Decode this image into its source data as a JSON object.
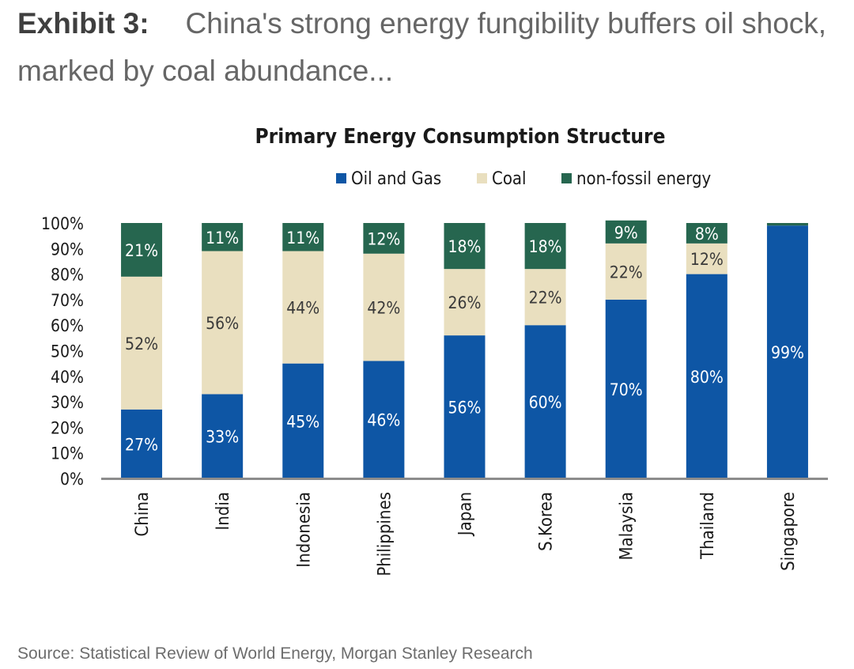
{
  "exhibit": {
    "label": "Exhibit 3:",
    "title": "China's strong energy fungibility buffers oil shock, marked by coal abundance..."
  },
  "source": "Source: Statistical Review of World Energy, Morgan Stanley Research",
  "colors": {
    "oil_gas": "#0e56a5",
    "coal": "#e9dfbf",
    "non_fossil": "#26664f",
    "axis": "#8c8c8c"
  },
  "chart_data": {
    "type": "bar",
    "stacked": true,
    "title": "Primary Energy Consumption Structure",
    "xlabel": "",
    "ylabel": "",
    "ylim": [
      0,
      100
    ],
    "y_ticks": [
      "0%",
      "10%",
      "20%",
      "30%",
      "40%",
      "50%",
      "60%",
      "70%",
      "80%",
      "90%",
      "100%"
    ],
    "legend_position": "top-center",
    "categories": [
      "China",
      "India",
      "Indonesia",
      "Philippines",
      "Japan",
      "S.Korea",
      "Malaysia",
      "Thailand",
      "Singapore"
    ],
    "series": [
      {
        "name": "Oil and Gas",
        "color_key": "oil_gas",
        "label_color": "#ffffff",
        "values": [
          27,
          33,
          45,
          46,
          56,
          60,
          70,
          80,
          99
        ],
        "labels": [
          "27%",
          "33%",
          "45%",
          "46%",
          "56%",
          "60%",
          "70%",
          "80%",
          "99%"
        ]
      },
      {
        "name": "Coal",
        "color_key": "coal",
        "label_color": "#3a3a3a",
        "values": [
          52,
          56,
          44,
          42,
          26,
          22,
          22,
          12,
          0
        ],
        "labels": [
          "52%",
          "56%",
          "44%",
          "42%",
          "26%",
          "22%",
          "22%",
          "12%",
          ""
        ]
      },
      {
        "name": "non-fossil energy",
        "color_key": "non_fossil",
        "label_color": "#ffffff",
        "values": [
          21,
          11,
          11,
          12,
          18,
          18,
          9,
          8,
          1
        ],
        "labels": [
          "21%",
          "11%",
          "11%",
          "12%",
          "18%",
          "18%",
          "9%",
          "8%",
          ""
        ]
      }
    ]
  }
}
